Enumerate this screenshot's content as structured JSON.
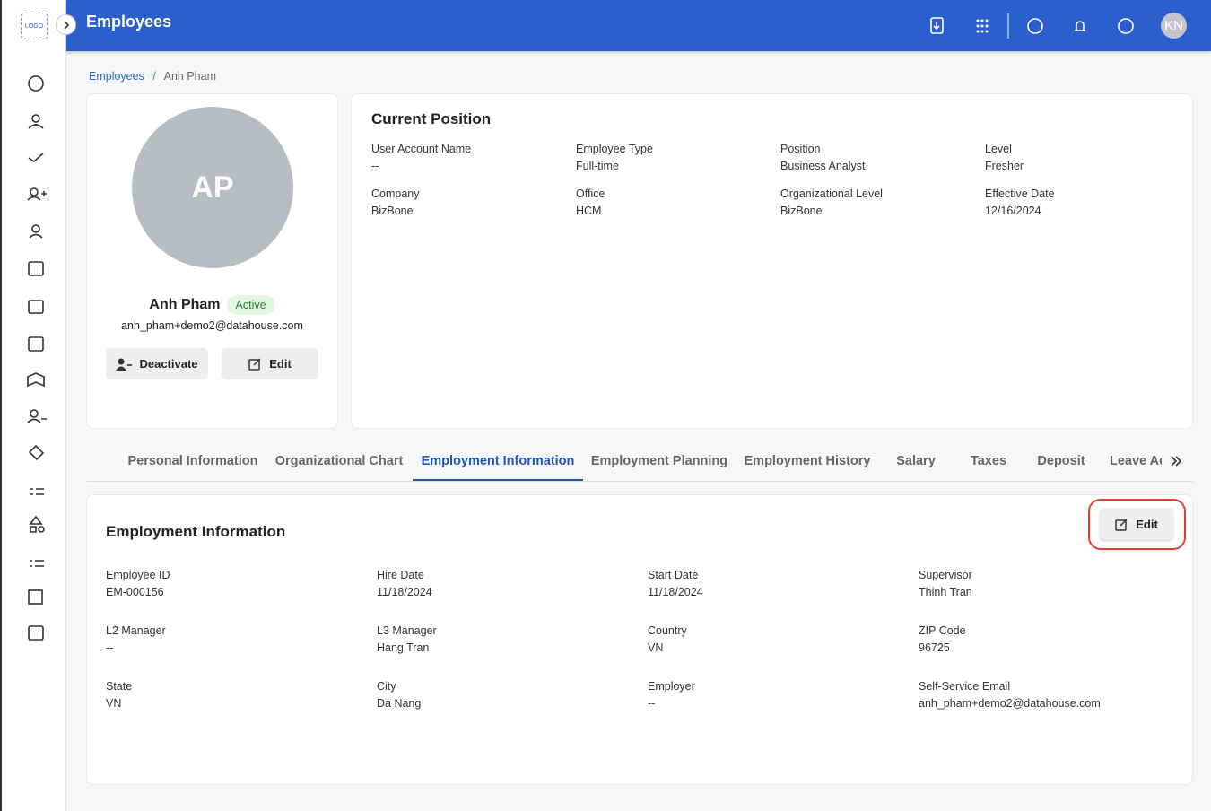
{
  "header": {
    "logo": "LOGO",
    "title": "Employees",
    "avatar": "KN"
  },
  "breadcrumb": {
    "items": [
      "Employees",
      "Anh Pham"
    ],
    "separator": "/"
  },
  "profile": {
    "initials": "AP",
    "name": "Anh Pham",
    "status": "Active",
    "email": "anh_pham+demo2@datahouse.com",
    "buttons": [
      "Deactivate",
      "Edit"
    ]
  },
  "current_position": {
    "title": "Current Position",
    "fields": [
      {
        "label": "User Account Name",
        "value": "--"
      },
      {
        "label": "Employee Type",
        "value": "Full-time"
      },
      {
        "label": "Position",
        "value": "Business Analyst"
      },
      {
        "label": "Level",
        "value": "Fresher"
      },
      {
        "label": "Company",
        "value": "BizBone"
      },
      {
        "label": "Office",
        "value": "HCM"
      },
      {
        "label": "Organizational Level",
        "value": "BizBone"
      },
      {
        "label": "Effective Date",
        "value": "12/16/2024"
      }
    ]
  },
  "tabs": [
    "Personal Information",
    "Organizational Chart",
    "Employment Information",
    "Employment Planning",
    "Employment History",
    "Salary",
    "Taxes",
    "Deposit",
    "Leave Ac"
  ],
  "employment": {
    "title": "Employment Information",
    "edit": "Edit",
    "fields": [
      {
        "label": "Employee ID",
        "value": "EM-000156"
      },
      {
        "label": "Hire Date",
        "value": "11/18/2024"
      },
      {
        "label": "Start Date",
        "value": "11/18/2024"
      },
      {
        "label": "Supervisor",
        "value": "Thinh Tran"
      },
      {
        "label": "L2 Manager",
        "value": "--"
      },
      {
        "label": "L3 Manager",
        "value": "Hang Tran"
      },
      {
        "label": "Country",
        "value": "VN"
      },
      {
        "label": "ZIP Code",
        "value": "96725"
      },
      {
        "label": "State",
        "value": "VN"
      },
      {
        "label": "City",
        "value": "Da Nang"
      },
      {
        "label": "Employer",
        "value": "--"
      },
      {
        "label": "Self-Service Email",
        "value": "anh_pham+demo2@datahouse.com"
      }
    ]
  }
}
